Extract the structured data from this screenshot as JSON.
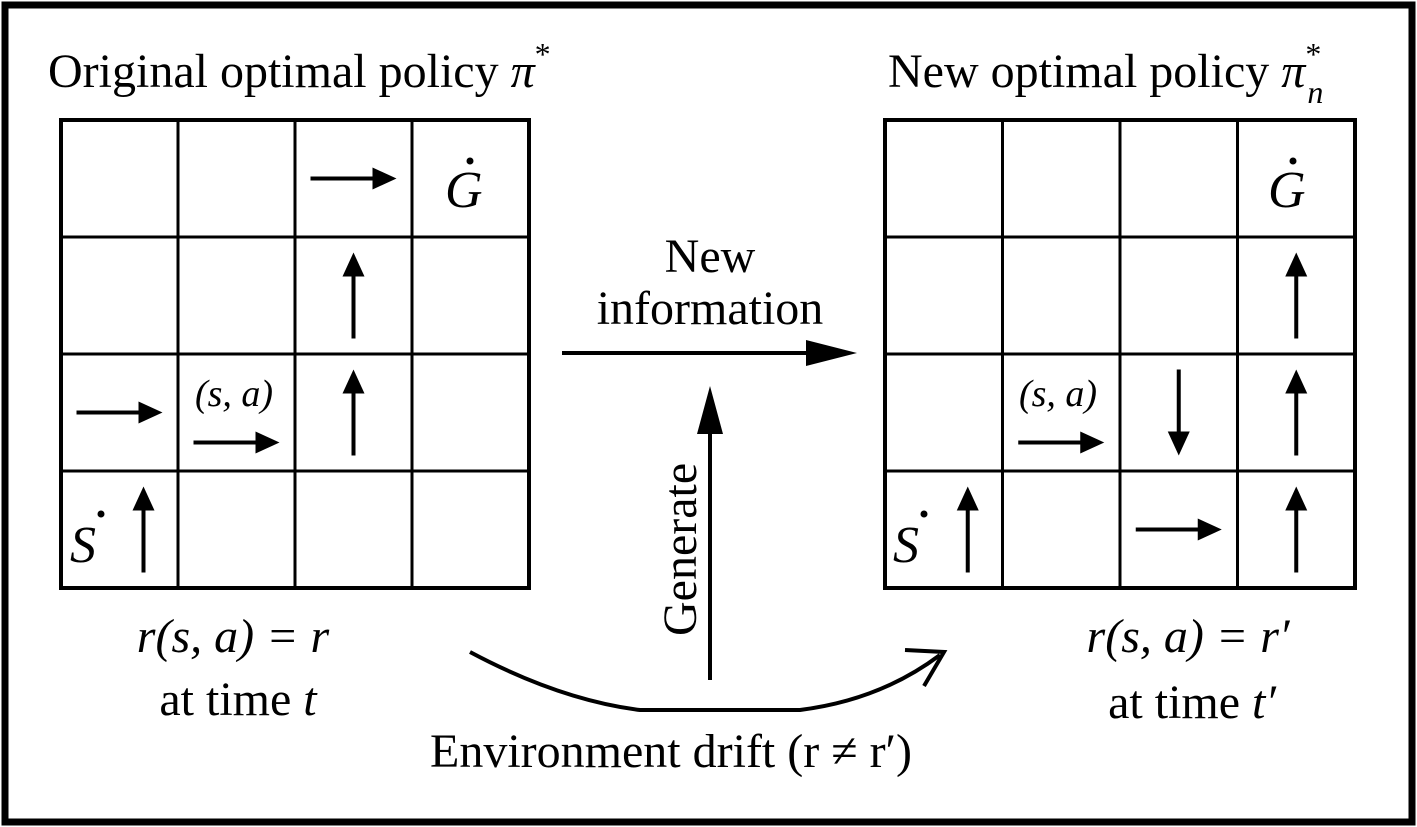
{
  "left": {
    "title_text": "Original optimal policy ",
    "title_symbol": "π",
    "title_superscript": "*",
    "goal_symbol": "G",
    "start_symbol": "S",
    "sa_label": "(s, a)",
    "reward_eq": "r(s, a) = r",
    "time_prefix": "at time ",
    "time_symbol": "t",
    "cells": [
      {
        "row": 0,
        "col": 2,
        "dir": "right"
      },
      {
        "row": 1,
        "col": 2,
        "dir": "up"
      },
      {
        "row": 2,
        "col": 0,
        "dir": "right"
      },
      {
        "row": 2,
        "col": 1,
        "dir": "right"
      },
      {
        "row": 2,
        "col": 2,
        "dir": "up"
      },
      {
        "row": 3,
        "col": 0,
        "dir": "up"
      }
    ]
  },
  "right": {
    "title_text": "New optimal policy ",
    "title_symbol": "π",
    "title_superscript": "*",
    "title_subscript": "n",
    "goal_symbol": "G",
    "start_symbol": "S",
    "sa_label": "(s, a)",
    "reward_eq": "r(s, a) = r′",
    "time_prefix": "at time ",
    "time_symbol": "t′",
    "cells": [
      {
        "row": 1,
        "col": 3,
        "dir": "up"
      },
      {
        "row": 2,
        "col": 1,
        "dir": "right"
      },
      {
        "row": 2,
        "col": 2,
        "dir": "down"
      },
      {
        "row": 2,
        "col": 3,
        "dir": "up"
      },
      {
        "row": 3,
        "col": 0,
        "dir": "up"
      },
      {
        "row": 3,
        "col": 2,
        "dir": "right"
      },
      {
        "row": 3,
        "col": 3,
        "dir": "up"
      }
    ]
  },
  "middle": {
    "new_info_line1": "New",
    "new_info_line2": "information",
    "generate_label": "Generate",
    "drift_label": "Environment drift (r ≠ r′)"
  }
}
